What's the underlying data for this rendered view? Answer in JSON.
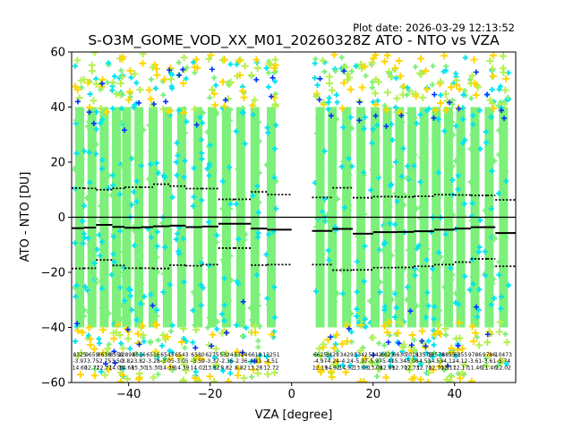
{
  "chart_data": {
    "type": "scatter",
    "title": "S-O3M_GOME_VOD_XX_M01_20260328Z ATO - NTO vs VZA",
    "plot_date": "Plot date: 2026-03-29 12:13:52",
    "xlabel": "VZA [degree]",
    "ylabel": "ATO - NTO [DU]",
    "xlim": [
      -54,
      55
    ],
    "ylim": [
      -60,
      60
    ],
    "xticks": [
      -40,
      -20,
      0,
      20,
      40
    ],
    "yticks": [
      -60,
      -40,
      -20,
      0,
      20,
      40,
      60
    ],
    "grid": false,
    "legend": "none",
    "marker": "plus",
    "colors": {
      "dense": "#7cf07a",
      "mid": "#00e5ee",
      "sparse_yellow": "#ffd700",
      "sparse_lime": "#b4f050",
      "blue": "#0033ff",
      "mean_line": "#000000",
      "zero_line": "#000000"
    },
    "columns": [
      {
        "vza": -52.0,
        "count": "8325",
        "mean": -3.97,
        "std": 14.6
      },
      {
        "vza": -49.0,
        "count": "9659",
        "mean": -3.75,
        "std": 12.77
      },
      {
        "vza": -46.0,
        "count": "8638",
        "mean": -2.75,
        "std": 12.77
      },
      {
        "vza": -43.0,
        "count": "8558",
        "mean": -3.5,
        "std": 14.05
      },
      {
        "vza": -40.5,
        "count": "12891",
        "mean": -3.82,
        "std": 14.68
      },
      {
        "vza": -37.5,
        "count": "6516",
        "mean": -3.82,
        "std": 15.3
      },
      {
        "vza": -34.0,
        "count": "6516",
        "mean": -3.28,
        "std": 15.3
      },
      {
        "vza": -30.5,
        "count": "6543",
        "mean": -3.05,
        "std": 14.39
      },
      {
        "vza": -27.0,
        "count": "6543",
        "mean": -3.05,
        "std": 14.39
      },
      {
        "vza": -23.0,
        "count": "6580",
        "mean": -3.59,
        "std": 14.02
      },
      {
        "vza": -19.5,
        "count": "6275",
        "mean": -3.37,
        "std": 13.82
      },
      {
        "vza": -16.0,
        "count": "5324",
        "mean": -2.36,
        "std": 8.82
      },
      {
        "vza": -12.5,
        "count": "5324",
        "mean": -2.36,
        "std": 8.82
      },
      {
        "vza": -9.0,
        "count": "6618",
        "mean": -4.11,
        "std": 13.28
      },
      {
        "vza": -5.0,
        "count": "13251",
        "mean": -4.51,
        "std": 12.72
      },
      {
        "vza": 7.0,
        "count": "6625",
        "mean": -4.97,
        "std": 12.19
      },
      {
        "vza": 10.0,
        "count": "3429",
        "mean": -4.24,
        "std": 14.92
      },
      {
        "vza": 13.5,
        "count": "3429",
        "mean": -4.24,
        "std": 14.92
      },
      {
        "vza": 17.0,
        "count": "5342",
        "mean": -5.97,
        "std": 13.08
      },
      {
        "vza": 20.5,
        "count": "5342",
        "mean": -5.97,
        "std": 13.08
      },
      {
        "vza": 23.5,
        "count": "6623",
        "mean": -5.41,
        "std": 12.89
      },
      {
        "vza": 26.5,
        "count": "6630",
        "mean": -5.34,
        "std": 12.7
      },
      {
        "vza": 29.5,
        "count": "7018",
        "mean": -5.08,
        "std": 12.73
      },
      {
        "vza": 32.5,
        "count": "13578",
        "mean": -4.53,
        "std": 12.7
      },
      {
        "vza": 35.5,
        "count": "13578",
        "mean": -4.53,
        "std": 12.7
      },
      {
        "vza": 38.5,
        "count": "6855",
        "mean": -4.12,
        "std": 12.17
      },
      {
        "vza": 41.5,
        "count": "6855",
        "mean": -4.12,
        "std": 12.17
      },
      {
        "vza": 45.0,
        "count": "9786",
        "mean": -3.61,
        "std": 11.46
      },
      {
        "vza": 48.5,
        "count": "9786",
        "mean": -3.61,
        "std": 11.46
      },
      {
        "vza": 52.0,
        "count": "10473",
        "mean": -5.74,
        "std": 12.02
      }
    ],
    "mean_line": [
      {
        "x1": -54,
        "x2": -51,
        "y": -3.97
      },
      {
        "x1": -51,
        "x2": -48,
        "y": -3.75
      },
      {
        "x1": -48,
        "x2": -44,
        "y": -2.75
      },
      {
        "x1": -44,
        "x2": -41,
        "y": -3.5
      },
      {
        "x1": -41,
        "x2": -37,
        "y": -3.82
      },
      {
        "x1": -37,
        "x2": -34,
        "y": -3.6
      },
      {
        "x1": -34,
        "x2": -30,
        "y": -3.28
      },
      {
        "x1": -30,
        "x2": -26,
        "y": -3.05
      },
      {
        "x1": -26,
        "x2": -22,
        "y": -3.59
      },
      {
        "x1": -22,
        "x2": -18,
        "y": -3.37
      },
      {
        "x1": -18,
        "x2": -14,
        "y": -2.36
      },
      {
        "x1": -14,
        "x2": -10,
        "y": -2.36
      },
      {
        "x1": -10,
        "x2": -6,
        "y": -4.11
      },
      {
        "x1": -6,
        "x2": 0,
        "y": -4.51
      },
      {
        "x1": 5,
        "x2": 10,
        "y": -4.97
      },
      {
        "x1": 10,
        "x2": 15,
        "y": -4.24
      },
      {
        "x1": 15,
        "x2": 20,
        "y": -5.97
      },
      {
        "x1": 20,
        "x2": 26,
        "y": -5.41
      },
      {
        "x1": 26,
        "x2": 30,
        "y": -5.34
      },
      {
        "x1": 30,
        "x2": 35,
        "y": -5.08
      },
      {
        "x1": 35,
        "x2": 40,
        "y": -4.53
      },
      {
        "x1": 40,
        "x2": 44,
        "y": -4.12
      },
      {
        "x1": 44,
        "x2": 48,
        "y": -3.61
      },
      {
        "x1": 48,
        "x2": 50,
        "y": -3.61
      },
      {
        "x1": 50,
        "x2": 55,
        "y": -5.74
      }
    ],
    "upper_sigma": [
      {
        "x1": -54,
        "x2": -51,
        "y": 10.6
      },
      {
        "x1": -51,
        "x2": -48,
        "y": 10.5
      },
      {
        "x1": -48,
        "x2": -44,
        "y": 10.0
      },
      {
        "x1": -44,
        "x2": -41,
        "y": 10.5
      },
      {
        "x1": -41,
        "x2": -37,
        "y": 10.9
      },
      {
        "x1": -37,
        "x2": -34,
        "y": 10.9
      },
      {
        "x1": -34,
        "x2": -30,
        "y": 12.0
      },
      {
        "x1": -30,
        "x2": -26,
        "y": 11.3
      },
      {
        "x1": -26,
        "x2": -22,
        "y": 10.4
      },
      {
        "x1": -22,
        "x2": -18,
        "y": 10.4
      },
      {
        "x1": -18,
        "x2": -14,
        "y": 6.5
      },
      {
        "x1": -14,
        "x2": -10,
        "y": 6.5
      },
      {
        "x1": -10,
        "x2": -6,
        "y": 9.2
      },
      {
        "x1": -6,
        "x2": 0,
        "y": 8.2
      },
      {
        "x1": 5,
        "x2": 10,
        "y": 7.2
      },
      {
        "x1": 10,
        "x2": 15,
        "y": 10.7
      },
      {
        "x1": 15,
        "x2": 20,
        "y": 7.1
      },
      {
        "x1": 20,
        "x2": 26,
        "y": 7.5
      },
      {
        "x1": 26,
        "x2": 30,
        "y": 7.4
      },
      {
        "x1": 30,
        "x2": 35,
        "y": 7.6
      },
      {
        "x1": 35,
        "x2": 40,
        "y": 8.2
      },
      {
        "x1": 40,
        "x2": 44,
        "y": 8.1
      },
      {
        "x1": 44,
        "x2": 48,
        "y": 7.9
      },
      {
        "x1": 48,
        "x2": 50,
        "y": 7.9
      },
      {
        "x1": 50,
        "x2": 55,
        "y": 6.3
      }
    ],
    "lower_sigma": [
      {
        "x1": -54,
        "x2": -51,
        "y": -18.6
      },
      {
        "x1": -51,
        "x2": -48,
        "y": -18.5
      },
      {
        "x1": -48,
        "x2": -44,
        "y": -15.5
      },
      {
        "x1": -44,
        "x2": -41,
        "y": -17.5
      },
      {
        "x1": -41,
        "x2": -37,
        "y": -18.5
      },
      {
        "x1": -37,
        "x2": -34,
        "y": -18.5
      },
      {
        "x1": -34,
        "x2": -30,
        "y": -18.6
      },
      {
        "x1": -30,
        "x2": -26,
        "y": -17.4
      },
      {
        "x1": -26,
        "x2": -22,
        "y": -17.6
      },
      {
        "x1": -22,
        "x2": -18,
        "y": -17.2
      },
      {
        "x1": -18,
        "x2": -14,
        "y": -11.2
      },
      {
        "x1": -14,
        "x2": -10,
        "y": -11.2
      },
      {
        "x1": -10,
        "x2": -6,
        "y": -17.4
      },
      {
        "x1": -6,
        "x2": 0,
        "y": -17.2
      },
      {
        "x1": 5,
        "x2": 10,
        "y": -17.2
      },
      {
        "x1": 10,
        "x2": 15,
        "y": -19.2
      },
      {
        "x1": 15,
        "x2": 20,
        "y": -19.1
      },
      {
        "x1": 20,
        "x2": 26,
        "y": -18.3
      },
      {
        "x1": 26,
        "x2": 30,
        "y": -18.2
      },
      {
        "x1": 30,
        "x2": 35,
        "y": -17.8
      },
      {
        "x1": 35,
        "x2": 40,
        "y": -17.2
      },
      {
        "x1": 40,
        "x2": 44,
        "y": -16.3
      },
      {
        "x1": 44,
        "x2": 48,
        "y": -15.1
      },
      {
        "x1": 48,
        "x2": 50,
        "y": -15.1
      },
      {
        "x1": 50,
        "x2": 55,
        "y": -17.8
      }
    ],
    "zero_line": 0
  }
}
